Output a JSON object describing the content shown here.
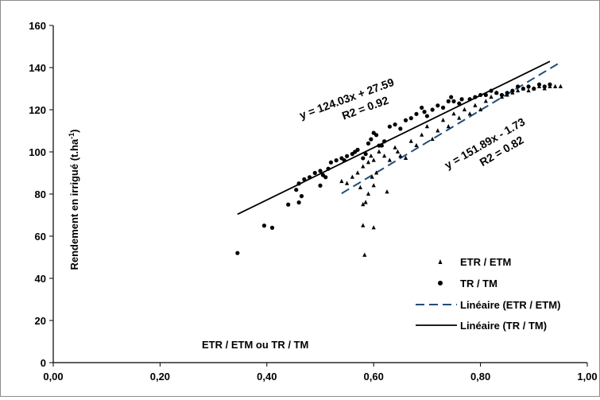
{
  "chart_data": {
    "type": "scatter",
    "xlabel": "ETR / ETM ou TR / TM",
    "ylabel": "Rendement en irrigué (t.ha-1)",
    "xlim": [
      0,
      1
    ],
    "ylim": [
      0,
      160
    ],
    "x_ticks": [
      "0,00",
      "0,20",
      "0,40",
      "0,60",
      "0,80",
      "1,00"
    ],
    "y_ticks": [
      "0",
      "20",
      "40",
      "60",
      "80",
      "100",
      "120",
      "140",
      "160"
    ],
    "grid": false,
    "legend_position": "bottom-right",
    "series": [
      {
        "name": "ETR / ETM",
        "marker": "triangle",
        "color": "#000000",
        "points": [
          [
            0.54,
            86
          ],
          [
            0.55,
            85
          ],
          [
            0.56,
            88
          ],
          [
            0.57,
            90
          ],
          [
            0.575,
            83
          ],
          [
            0.58,
            93
          ],
          [
            0.58,
            75
          ],
          [
            0.58,
            65
          ],
          [
            0.583,
            51
          ],
          [
            0.585,
            76
          ],
          [
            0.59,
            95
          ],
          [
            0.59,
            80
          ],
          [
            0.595,
            98
          ],
          [
            0.597,
            88
          ],
          [
            0.6,
            64
          ],
          [
            0.6,
            96
          ],
          [
            0.6,
            84
          ],
          [
            0.605,
            90
          ],
          [
            0.61,
            100
          ],
          [
            0.615,
            103
          ],
          [
            0.62,
            98
          ],
          [
            0.625,
            81
          ],
          [
            0.63,
            96
          ],
          [
            0.64,
            102
          ],
          [
            0.645,
            100
          ],
          [
            0.65,
            98
          ],
          [
            0.66,
            97
          ],
          [
            0.67,
            105
          ],
          [
            0.68,
            103
          ],
          [
            0.69,
            108
          ],
          [
            0.7,
            112
          ],
          [
            0.71,
            106
          ],
          [
            0.72,
            110
          ],
          [
            0.73,
            115
          ],
          [
            0.74,
            112
          ],
          [
            0.75,
            118
          ],
          [
            0.76,
            116
          ],
          [
            0.77,
            120
          ],
          [
            0.78,
            118
          ],
          [
            0.79,
            122
          ],
          [
            0.8,
            120
          ],
          [
            0.81,
            124
          ],
          [
            0.82,
            126
          ],
          [
            0.83,
            128
          ],
          [
            0.84,
            126
          ],
          [
            0.85,
            127
          ],
          [
            0.86,
            128
          ],
          [
            0.87,
            129
          ],
          [
            0.88,
            130
          ],
          [
            0.89,
            129
          ],
          [
            0.9,
            130
          ],
          [
            0.91,
            131
          ],
          [
            0.92,
            130
          ],
          [
            0.93,
            131
          ],
          [
            0.94,
            131
          ],
          [
            0.95,
            131
          ]
        ]
      },
      {
        "name": "TR / TM",
        "marker": "circle",
        "color": "#000000",
        "points": [
          [
            0.345,
            52
          ],
          [
            0.395,
            65
          ],
          [
            0.41,
            64
          ],
          [
            0.44,
            75
          ],
          [
            0.455,
            82
          ],
          [
            0.46,
            76
          ],
          [
            0.46,
            85
          ],
          [
            0.465,
            79
          ],
          [
            0.47,
            87
          ],
          [
            0.48,
            88
          ],
          [
            0.49,
            90
          ],
          [
            0.5,
            91
          ],
          [
            0.5,
            84
          ],
          [
            0.505,
            89
          ],
          [
            0.51,
            88
          ],
          [
            0.515,
            92
          ],
          [
            0.52,
            95
          ],
          [
            0.53,
            96
          ],
          [
            0.54,
            97
          ],
          [
            0.545,
            96
          ],
          [
            0.55,
            98
          ],
          [
            0.56,
            99
          ],
          [
            0.565,
            100
          ],
          [
            0.57,
            101
          ],
          [
            0.58,
            97
          ],
          [
            0.585,
            99
          ],
          [
            0.59,
            104
          ],
          [
            0.595,
            106
          ],
          [
            0.6,
            109
          ],
          [
            0.605,
            108
          ],
          [
            0.61,
            103
          ],
          [
            0.615,
            103
          ],
          [
            0.62,
            105
          ],
          [
            0.63,
            112
          ],
          [
            0.64,
            113
          ],
          [
            0.65,
            111
          ],
          [
            0.66,
            115
          ],
          [
            0.67,
            116
          ],
          [
            0.68,
            118
          ],
          [
            0.69,
            121
          ],
          [
            0.695,
            119
          ],
          [
            0.7,
            117
          ],
          [
            0.71,
            120
          ],
          [
            0.72,
            122
          ],
          [
            0.73,
            121
          ],
          [
            0.74,
            124
          ],
          [
            0.745,
            126
          ],
          [
            0.75,
            124
          ],
          [
            0.76,
            123
          ],
          [
            0.765,
            125
          ],
          [
            0.78,
            125
          ],
          [
            0.79,
            126
          ],
          [
            0.8,
            127
          ],
          [
            0.81,
            127
          ],
          [
            0.82,
            129
          ],
          [
            0.83,
            128
          ],
          [
            0.84,
            127
          ],
          [
            0.85,
            128
          ],
          [
            0.86,
            129
          ],
          [
            0.87,
            131
          ],
          [
            0.88,
            130
          ],
          [
            0.89,
            131
          ],
          [
            0.9,
            130
          ],
          [
            0.91,
            132
          ],
          [
            0.92,
            131
          ],
          [
            0.93,
            132
          ]
        ]
      },
      {
        "name": "Linéaire (ETR / ETM)",
        "type": "line",
        "style": "dashed",
        "color": "#1f4e79",
        "slope": 151.89,
        "intercept": -1.73,
        "x_range": [
          0.54,
          0.95
        ]
      },
      {
        "name": "Linéaire (TR / TM)",
        "type": "line",
        "style": "solid",
        "color": "#000000",
        "slope": 124.03,
        "intercept": 27.59,
        "x_range": [
          0.345,
          0.93
        ]
      }
    ],
    "annotations": [
      {
        "text": "y = 124.03x + 27.59",
        "rotation": -20
      },
      {
        "text": "R2 = 0.92",
        "rotation": -20
      },
      {
        "text": "y = 151.89x - 1.73",
        "rotation": -30
      },
      {
        "text": "R2 = 0.82",
        "rotation": -30
      }
    ]
  }
}
